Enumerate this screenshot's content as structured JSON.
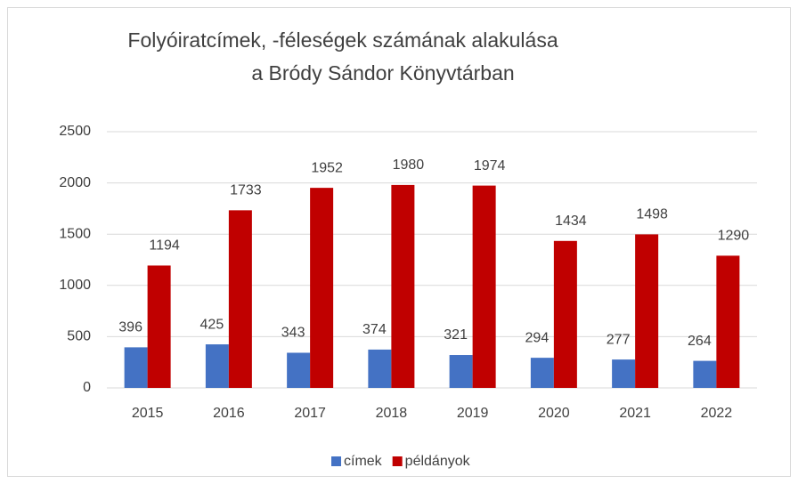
{
  "chart_data": {
    "type": "bar",
    "title": [
      "Folyóiratcímek, -féleségek számának alakulása",
      "a Bródy Sándor Könyvtárban"
    ],
    "categories": [
      "2015",
      "2016",
      "2017",
      "2018",
      "2019",
      "2020",
      "2021",
      "2022"
    ],
    "series": [
      {
        "name": "címek",
        "color": "#4472c4",
        "values": [
          396,
          425,
          343,
          374,
          321,
          294,
          277,
          264
        ]
      },
      {
        "name": "példányok",
        "color": "#c00000",
        "values": [
          1194,
          1733,
          1952,
          1980,
          1974,
          1434,
          1498,
          1290
        ]
      }
    ],
    "ylim": [
      0,
      2500
    ],
    "yticks": [
      0,
      500,
      1000,
      1500,
      2000,
      2500
    ],
    "grid": true,
    "legend": "bottom"
  }
}
